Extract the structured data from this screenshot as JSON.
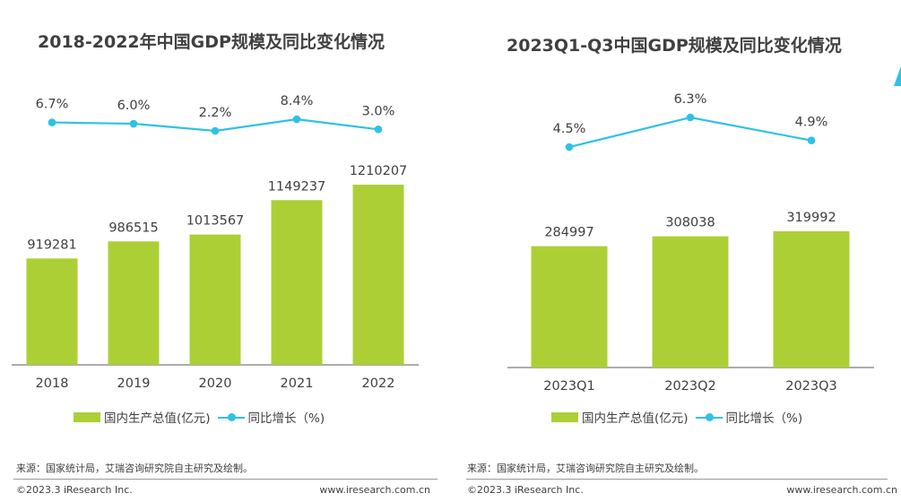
{
  "colors": {
    "bar": "#adcf36",
    "line": "#2fc1e6",
    "text": "#404040",
    "axis": "#595959"
  },
  "charts": [
    {
      "title": "2018-2022年中国GDP规模及同比变化情况",
      "legend": {
        "bar_label": "国内生产总值(亿元)",
        "line_label": "同比增长（%)"
      },
      "source": "来源：国家统计局，艾瑞咨询研究院自主研究及绘制。",
      "copyright": "©2023.3 iResearch Inc.",
      "site": "www.iresearch.com.cn"
    },
    {
      "title": "2023Q1-Q3中国GDP规模及同比变化情况",
      "legend": {
        "bar_label": "国内生产总值(亿元)",
        "line_label": "同比增长（%)"
      },
      "source": "来源：国家统计局，艾瑞咨询研究院自主研究及绘制。",
      "copyright": "©2023.3 iResearch Inc.",
      "site": "www.iresearch.com.cn"
    }
  ],
  "chart_data": [
    {
      "type": "bar",
      "title": "2018-2022年中国GDP规模及同比变化情况",
      "categories": [
        "2018",
        "2019",
        "2020",
        "2021",
        "2022"
      ],
      "series": [
        {
          "name": "国内生产总值(亿元)",
          "type": "bar",
          "values": [
            919281,
            986515,
            1013567,
            1149237,
            1210207
          ],
          "labels": [
            "919281",
            "986515",
            "1013567",
            "1149237",
            "1210207"
          ]
        },
        {
          "name": "同比增长（%)",
          "type": "line",
          "values": [
            6.7,
            6.0,
            2.2,
            8.4,
            3.0
          ],
          "labels": [
            "6.7%",
            "6.0%",
            "2.2%",
            "8.4%",
            "3.0%"
          ]
        }
      ],
      "grid": false,
      "legend_position": "bottom"
    },
    {
      "type": "bar",
      "title": "2023Q1-Q3中国GDP规模及同比变化情况",
      "categories": [
        "2023Q1",
        "2023Q2",
        "2023Q3"
      ],
      "series": [
        {
          "name": "国内生产总值(亿元)",
          "type": "bar",
          "values": [
            284997,
            308038,
            319992
          ],
          "labels": [
            "284997",
            "308038",
            "319992"
          ]
        },
        {
          "name": "同比增长（%)",
          "type": "line",
          "values": [
            4.5,
            6.3,
            4.9
          ],
          "labels": [
            "4.5%",
            "6.3%",
            "4.9%"
          ]
        }
      ],
      "grid": false,
      "legend_position": "bottom"
    }
  ]
}
